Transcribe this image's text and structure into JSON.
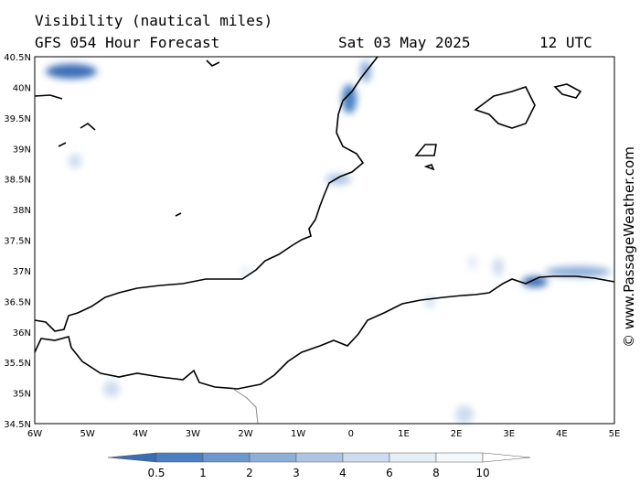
{
  "header": {
    "title": "Visibility (nautical miles)",
    "subtitle": "GFS 054 Hour Forecast",
    "date": "Sat 03 May 2025",
    "time": "12 UTC"
  },
  "watermark": "© www.PassageWeather.com",
  "lat_labels": [
    "40.5N",
    "40N",
    "39.5N",
    "39N",
    "38.5N",
    "38N",
    "37.5N",
    "37N",
    "36.5N",
    "36N",
    "35.5N",
    "35N",
    "34.5N"
  ],
  "lon_labels": [
    "6W",
    "5W",
    "4W",
    "3W",
    "2W",
    "1W",
    "0",
    "1E",
    "2E",
    "3E",
    "4E",
    "5E"
  ],
  "legend_labels": [
    0.5,
    1,
    2,
    3,
    4,
    6,
    8,
    10
  ]
}
